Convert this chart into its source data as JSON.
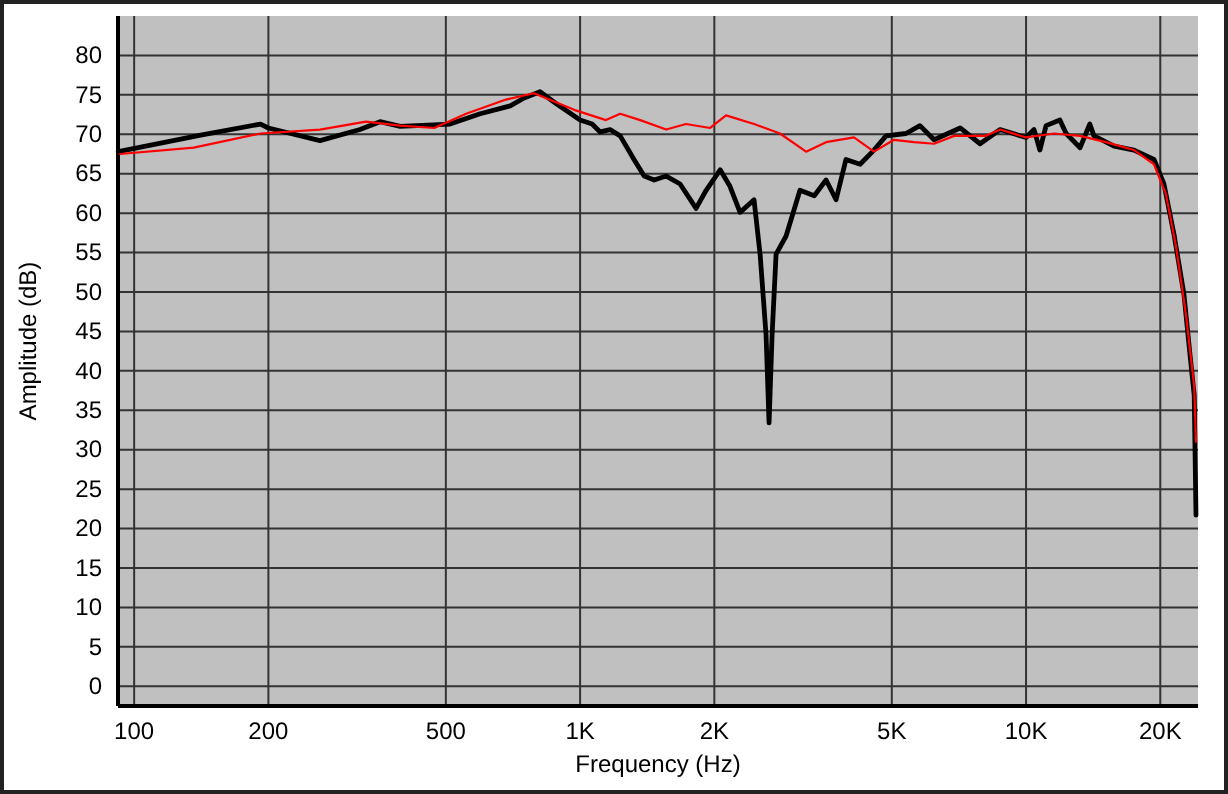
{
  "chart_data": {
    "type": "line",
    "xlabel": "Frequency (Hz)",
    "ylabel": "Amplitude (dB)",
    "log": "x",
    "xlim": [
      92,
      24300
    ],
    "ylim": [
      -2.5,
      85
    ],
    "xticks": [
      100,
      200,
      500,
      {
        "value": 1000,
        "label": "1K"
      },
      {
        "value": 2000,
        "label": "2K"
      },
      {
        "value": 5000,
        "label": "5K"
      },
      {
        "value": 10000,
        "label": "10K"
      },
      {
        "value": 20000,
        "label": "20K"
      }
    ],
    "yticks": [
      0,
      5,
      10,
      15,
      20,
      25,
      30,
      35,
      40,
      45,
      50,
      55,
      60,
      65,
      70,
      75,
      80
    ],
    "grid": true,
    "marker": "none",
    "line_style": "solid",
    "series": [
      {
        "color": "#000000",
        "x": [
          92.1,
          141,
          192,
          200,
          261,
          321,
          356,
          395,
          511,
          597,
          697,
          749,
          813,
          883,
          1000,
          1064,
          1109,
          1167,
          1230,
          1321,
          1392,
          1466,
          1560,
          1676,
          1820,
          1917,
          2061,
          2168,
          2284,
          2455,
          2533,
          2612,
          2653,
          2695,
          2751,
          2897,
          3112,
          3350,
          3561,
          3750,
          3946,
          4245,
          4561,
          4853,
          5380,
          5781,
          6220,
          7117,
          7888,
          8747,
          10000,
          10420,
          10740,
          11090,
          11910,
          12300,
          13220,
          13900,
          14200,
          15750,
          17460,
          19360,
          20380,
          21470,
          22600,
          23320,
          23830,
          24050
        ],
        "values": [
          67.8,
          69.9,
          71.3,
          70.8,
          69.2,
          70.6,
          71.6,
          71.0,
          71.3,
          72.6,
          73.6,
          74.6,
          75.4,
          73.9,
          71.8,
          71.3,
          70.3,
          70.6,
          69.8,
          66.8,
          64.7,
          64.2,
          64.7,
          63.7,
          60.6,
          62.9,
          65.5,
          63.4,
          60.1,
          61.7,
          54.8,
          44.6,
          33.4,
          44.6,
          54.8,
          57.1,
          62.9,
          62.2,
          64.2,
          61.7,
          66.8,
          66.2,
          68.0,
          69.8,
          70.1,
          71.1,
          69.3,
          70.8,
          68.8,
          70.6,
          69.6,
          70.6,
          68.0,
          71.1,
          71.8,
          70.1,
          68.3,
          71.3,
          69.8,
          68.5,
          68.0,
          66.8,
          63.7,
          57.3,
          49.7,
          42.0,
          36.9,
          21.7
        ]
      },
      {
        "color": "#ff0000",
        "x": [
          93,
          136,
          192,
          261,
          331,
          395,
          471,
          555,
          682,
          788,
          970,
          1143,
          1230,
          1364,
          1560,
          1728,
          1957,
          2124,
          2455,
          2807,
          3212,
          3561,
          4112,
          4561,
          5058,
          5610,
          6220,
          6898,
          8130,
          8747,
          10000,
          11560,
          13220,
          15100,
          17460,
          19360,
          20590,
          21690,
          22840,
          23830,
          24050
        ],
        "values": [
          67.5,
          68.3,
          70.1,
          70.6,
          71.6,
          71.1,
          70.8,
          72.6,
          74.4,
          75.2,
          73.1,
          71.8,
          72.6,
          71.8,
          70.6,
          71.3,
          70.8,
          72.4,
          71.3,
          70.1,
          67.8,
          69.0,
          69.6,
          67.8,
          69.3,
          69.0,
          68.8,
          69.8,
          69.8,
          70.6,
          69.6,
          70.1,
          69.8,
          69.0,
          68.0,
          66.2,
          62.4,
          55.8,
          47.1,
          38.0,
          31.0
        ]
      }
    ]
  }
}
